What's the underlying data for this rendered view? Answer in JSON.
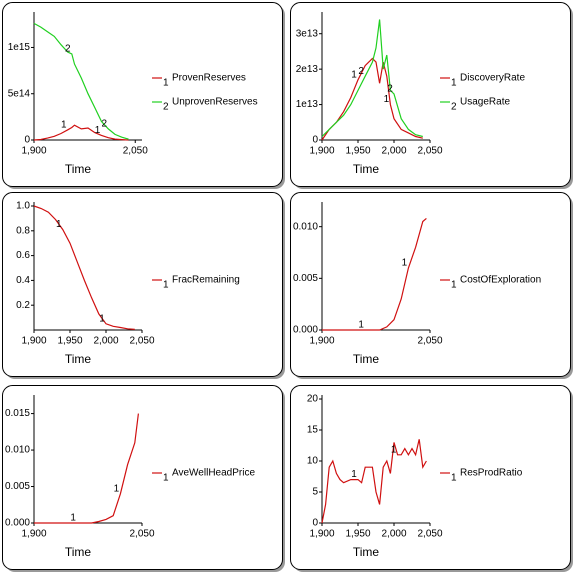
{
  "chart_data": [
    {
      "type": "line",
      "xlabel": "Time",
      "x": [
        1900,
        1910,
        1920,
        1930,
        1940,
        1950,
        1956,
        1960,
        1970,
        1980,
        1990,
        2000,
        2010,
        2020,
        2030,
        2040
      ],
      "series": [
        {
          "name": "ProvenReserves",
          "number": "1",
          "color": "#d01010",
          "values": [
            0,
            5000000000000.0,
            20000000000000.0,
            40000000000000.0,
            70000000000000.0,
            110000000000000.0,
            135000000000000.0,
            160000000000000.0,
            120000000000000.0,
            130000000000000.0,
            80000000000000.0,
            50000000000000.0,
            25000000000000.0,
            10000000000000.0,
            4000000000000.0,
            0
          ]
        },
        {
          "name": "UnprovenReserves",
          "number": "2",
          "color": "#20d020",
          "values": [
            1260000000000000.0,
            1220000000000000.0,
            1170000000000000.0,
            1120000000000000.0,
            1030000000000000.0,
            950000000000000.0,
            930000000000000.0,
            820000000000000.0,
            670000000000000.0,
            500000000000000.0,
            350000000000000.0,
            200000000000000.0,
            120000000000000.0,
            60000000000000.0,
            30000000000000.0,
            10000000000000.0
          ]
        }
      ],
      "xlim": [
        1900,
        2060
      ],
      "ylim": [
        0,
        1340000000000000.0
      ],
      "xticks": [
        {
          "value": 1900,
          "label": "1,900"
        },
        {
          "value": 2050,
          "label": "2,050"
        }
      ],
      "yticks": [
        0,
        {
          "value": 500000000000000.0,
          "label": "5e14"
        },
        {
          "value": 1000000000000000.0,
          "label": "1e15"
        }
      ]
    },
    {
      "type": "line",
      "xlabel": "Time",
      "x": [
        1900,
        1910,
        1920,
        1930,
        1940,
        1950,
        1960,
        1970,
        1975,
        1980,
        1985,
        1990,
        1995,
        2000,
        2010,
        2020,
        2030,
        2040
      ],
      "series": [
        {
          "name": "DiscoveryRate",
          "number": "1",
          "color": "#d01010",
          "values": [
            0,
            3000000000000.0,
            5000000000000.0,
            8000000000000.0,
            12000000000000.0,
            17000000000000.0,
            21000000000000.0,
            23000000000000.0,
            22000000000000.0,
            16000000000000.0,
            22000000000000.0,
            18000000000000.0,
            10000000000000.0,
            6000000000000.0,
            3000000000000.0,
            2000000000000.0,
            1000000000000.0,
            500000000000.0
          ]
        },
        {
          "name": "UsageRate",
          "number": "2",
          "color": "#20d020",
          "values": [
            1000000000000.0,
            3000000000000.0,
            5000000000000.0,
            7000000000000.0,
            10000000000000.0,
            14000000000000.0,
            18000000000000.0,
            22000000000000.0,
            26000000000000.0,
            34000000000000.0,
            20000000000000.0,
            24000000000000.0,
            14000000000000.0,
            13000000000000.0,
            6000000000000.0,
            3000000000000.0,
            1500000000000.0,
            1000000000000.0
          ]
        }
      ],
      "xlim": [
        1900,
        2050
      ],
      "ylim": [
        0,
        35000000000000.0
      ],
      "xticks": [
        {
          "value": 1900,
          "label": "1,900"
        },
        {
          "value": 1950,
          "label": "1,950"
        },
        {
          "value": 2000,
          "label": "2,000"
        },
        {
          "value": 2050,
          "label": "2,050"
        }
      ],
      "yticks": [
        0,
        {
          "value": 10000000000000.0,
          "label": "1e13"
        },
        {
          "value": 20000000000000.0,
          "label": "2e13"
        },
        {
          "value": 30000000000000.0,
          "label": "3e13"
        }
      ]
    },
    {
      "type": "line",
      "xlabel": "Time",
      "x": [
        1900,
        1910,
        1920,
        1930,
        1940,
        1950,
        1960,
        1970,
        1980,
        1990,
        2000,
        2010,
        2020,
        2030,
        2040
      ],
      "series": [
        {
          "name": "FracRemaining",
          "number": "1",
          "color": "#d01010",
          "values": [
            1.0,
            0.98,
            0.95,
            0.89,
            0.81,
            0.7,
            0.55,
            0.4,
            0.26,
            0.13,
            0.05,
            0.03,
            0.02,
            0.01,
            0.005
          ]
        }
      ],
      "xlim": [
        1900,
        2050
      ],
      "ylim": [
        0,
        1.0
      ],
      "xticks": [
        {
          "value": 1900,
          "label": "1,900"
        },
        {
          "value": 1950,
          "label": "1,950"
        },
        {
          "value": 2000,
          "label": "2,000"
        },
        {
          "value": 2050,
          "label": "2,050"
        }
      ],
      "yticks": [
        0.2,
        0.4,
        0.6,
        0.8,
        {
          "value": 1,
          "label": "1.0"
        }
      ]
    },
    {
      "type": "line",
      "xlabel": "Time",
      "x": [
        1900,
        1920,
        1940,
        1960,
        1980,
        1990,
        2000,
        2010,
        2020,
        2030,
        2040,
        2045
      ],
      "series": [
        {
          "name": "CostOfExploration",
          "number": "1",
          "color": "#d01010",
          "values": [
            0,
            0,
            0,
            0,
            0,
            0.0003,
            0.001,
            0.003,
            0.006,
            0.008,
            0.0105,
            0.0108
          ]
        }
      ],
      "xlim": [
        1900,
        2050
      ],
      "ylim": [
        0,
        0.012
      ],
      "xticks": [
        {
          "value": 1900,
          "label": "1,900"
        },
        {
          "value": 2050,
          "label": "2,050"
        }
      ],
      "yticks": [
        {
          "value": 0,
          "label": "0.000"
        },
        0.005,
        {
          "value": 0.01,
          "label": "0.010"
        }
      ]
    },
    {
      "type": "line",
      "xlabel": "Time",
      "x": [
        1900,
        1920,
        1940,
        1960,
        1980,
        1990,
        2000,
        2010,
        2020,
        2030,
        2040,
        2045
      ],
      "series": [
        {
          "name": "AveWellHeadPrice",
          "number": "1",
          "color": "#d01010",
          "values": [
            0,
            0,
            0,
            0,
            0,
            0.0002,
            0.0005,
            0.001,
            0.004,
            0.008,
            0.011,
            0.015
          ]
        }
      ],
      "xlim": [
        1900,
        2050
      ],
      "ylim": [
        0,
        0.017
      ],
      "xticks": [
        {
          "value": 1900,
          "label": "1,900"
        },
        {
          "value": 2050,
          "label": "2,050"
        }
      ],
      "yticks": [
        {
          "value": 0,
          "label": "0.000"
        },
        0.005,
        {
          "value": 0.01,
          "label": "0.010"
        },
        0.015
      ]
    },
    {
      "type": "line",
      "xlabel": "Time",
      "x": [
        1900,
        1905,
        1910,
        1915,
        1920,
        1925,
        1930,
        1940,
        1950,
        1955,
        1960,
        1970,
        1975,
        1980,
        1985,
        1990,
        1995,
        2000,
        2005,
        2010,
        2015,
        2020,
        2025,
        2030,
        2035,
        2040,
        2045
      ],
      "series": [
        {
          "name": "ResProdRatio",
          "number": "1",
          "color": "#d01010",
          "values": [
            0,
            3,
            9,
            10,
            8,
            7,
            6.5,
            7,
            7,
            6.5,
            9,
            9,
            5,
            3,
            9,
            10,
            8,
            13,
            11,
            11,
            12,
            11,
            12,
            11,
            13.5,
            9,
            10
          ]
        }
      ],
      "xlim": [
        1900,
        2050
      ],
      "ylim": [
        0,
        20
      ],
      "xticks": [
        {
          "value": 1900,
          "label": "1,900"
        },
        {
          "value": 1950,
          "label": "1,950"
        },
        {
          "value": 2000,
          "label": "2,000"
        },
        {
          "value": 2050,
          "label": "2,050"
        }
      ],
      "yticks": [
        0,
        5,
        10,
        15,
        20
      ]
    }
  ]
}
